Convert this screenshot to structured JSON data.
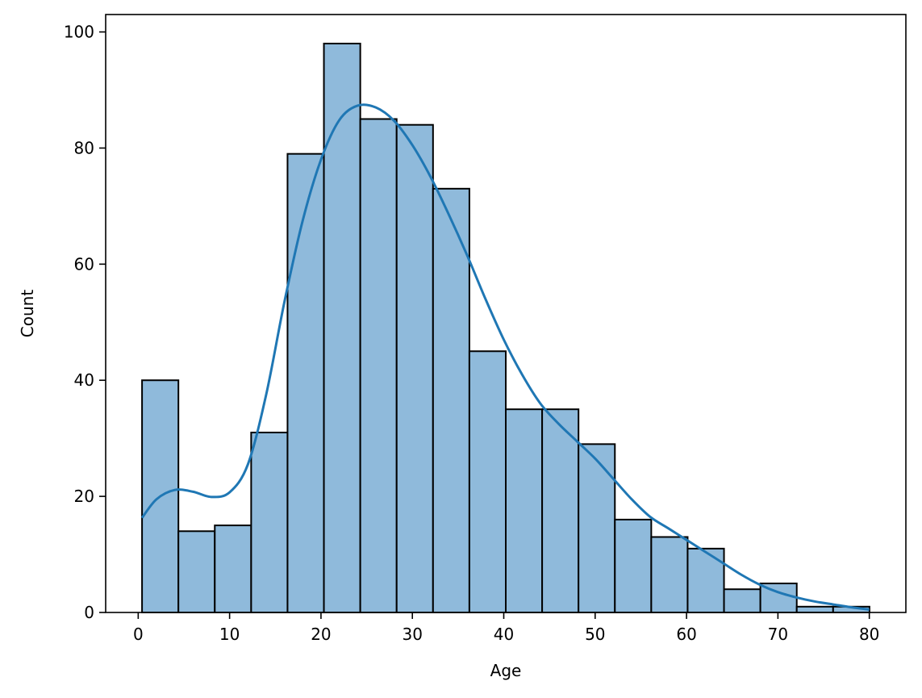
{
  "chart_data": {
    "type": "bar",
    "subtype": "histogram",
    "title": "",
    "xlabel": "Age",
    "ylabel": "Count",
    "xlim": [
      -3.56,
      84.0
    ],
    "ylim": [
      0,
      103
    ],
    "xticks": [
      0,
      10,
      20,
      30,
      40,
      50,
      60,
      70,
      80
    ],
    "yticks": [
      0,
      20,
      40,
      60,
      80,
      100
    ],
    "grid": false,
    "legend": "none",
    "bin_edges": [
      0.42,
      4.4,
      8.38,
      12.36,
      16.34,
      20.32,
      24.3,
      28.28,
      32.26,
      36.24,
      40.22,
      44.2,
      48.18,
      52.16,
      56.14,
      60.12,
      64.1,
      68.08,
      72.06,
      76.04,
      80.02
    ],
    "values": [
      40,
      14,
      15,
      31,
      79,
      98,
      85,
      84,
      73,
      45,
      35,
      35,
      29,
      16,
      13,
      11,
      4,
      5,
      1,
      1
    ],
    "kde": {
      "x": [
        0.42,
        2,
        4,
        6,
        8,
        10,
        12,
        14,
        16,
        18,
        20,
        22,
        24,
        26,
        28,
        30,
        32,
        34,
        36,
        38,
        40,
        42,
        44,
        46,
        48,
        50,
        52,
        54,
        56,
        58,
        60,
        62,
        64,
        66,
        68,
        70,
        72,
        74,
        76,
        78,
        80
      ],
      "y": [
        16.3,
        19.5,
        21.1,
        20.8,
        19.9,
        20.7,
        25.5,
        37.5,
        53.5,
        67.5,
        78.0,
        84.8,
        87.3,
        87.0,
        84.7,
        80.5,
        75.0,
        68.5,
        61.5,
        54.0,
        47.0,
        41.0,
        36.0,
        32.5,
        29.5,
        26.5,
        23.0,
        19.5,
        16.5,
        14.5,
        12.5,
        10.5,
        8.5,
        6.5,
        4.8,
        3.5,
        2.6,
        1.9,
        1.4,
        0.9,
        0.5
      ]
    },
    "colors": {
      "bar_fill": "#8fbadb",
      "bar_edge": "#000000",
      "kde_line": "#1f77b4"
    }
  }
}
